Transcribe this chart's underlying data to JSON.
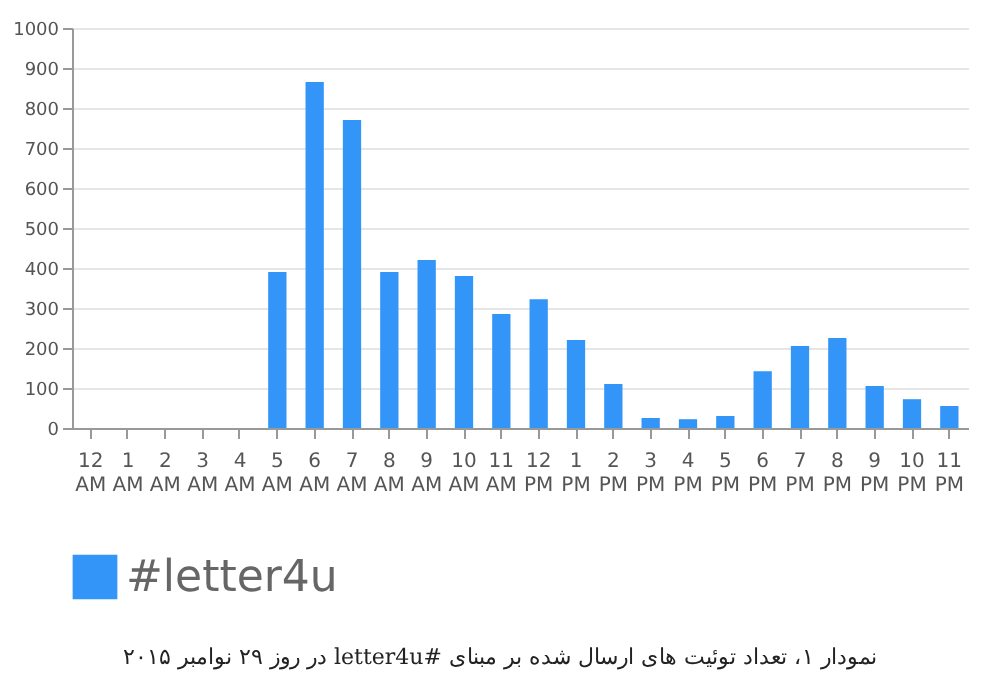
{
  "chart_data": {
    "type": "bar",
    "categories": [
      "12 AM",
      "1 AM",
      "2 AM",
      "3 AM",
      "4 AM",
      "5 AM",
      "6 AM",
      "7 AM",
      "8 AM",
      "9 AM",
      "10 AM",
      "11 AM",
      "12 PM",
      "1 PM",
      "2 PM",
      "3 PM",
      "4 PM",
      "5 PM",
      "6 PM",
      "7 PM",
      "8 PM",
      "9 PM",
      "10 PM",
      "11 PM"
    ],
    "series": [
      {
        "name": "#letter4u",
        "color": "#3395f7",
        "values": [
          0,
          0,
          0,
          0,
          0,
          390,
          865,
          770,
          390,
          420,
          380,
          285,
          322,
          220,
          110,
          25,
          22,
          30,
          142,
          205,
          225,
          105,
          72,
          55
        ]
      }
    ],
    "ylim": [
      0,
      1000
    ],
    "yticks": [
      0,
      100,
      200,
      300,
      400,
      500,
      600,
      700,
      800,
      900,
      1000
    ],
    "grid": "y",
    "legend": "bottom",
    "annotations": [
      "نمودار ۱، تعداد توئیت های ارسال شده بر مبنای #letter4u در روز ۲۹ نوامبر ۲۰۱۵"
    ]
  }
}
